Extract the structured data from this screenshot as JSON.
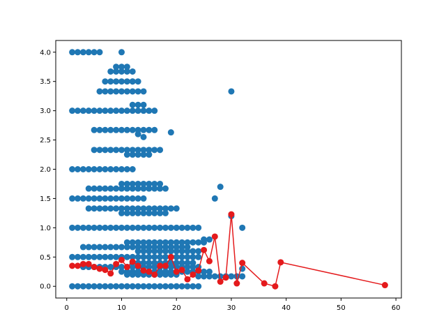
{
  "chart_data": {
    "type": "scatter",
    "title": "",
    "xlabel": "",
    "ylabel": "",
    "xlim": [
      -2,
      61
    ],
    "ylim": [
      -0.2,
      4.2
    ],
    "x_ticks": [
      0,
      10,
      20,
      30,
      40,
      50,
      60
    ],
    "y_ticks": [
      0.0,
      0.5,
      1.0,
      1.5,
      2.0,
      2.5,
      3.0,
      3.5,
      4.0
    ],
    "y_tick_labels": [
      "0.0",
      "0.5",
      "1.0",
      "1.5",
      "2.0",
      "2.5",
      "3.0",
      "3.5",
      "4.0"
    ],
    "grid": false,
    "legend": "none",
    "colors": {
      "scatter": "#1f77b4",
      "line": "#e41a1c"
    },
    "scatter": {
      "x": [
        1,
        2,
        3,
        4,
        5,
        6,
        7,
        8,
        9,
        10,
        11,
        12,
        13,
        14,
        15,
        16,
        17,
        18,
        19,
        20,
        21,
        22,
        23,
        24,
        1,
        2,
        3,
        4,
        5,
        6,
        7,
        8,
        9,
        10,
        11,
        12,
        13,
        14,
        15,
        16,
        17,
        18,
        19,
        20,
        21,
        22,
        23,
        24,
        1,
        2,
        3,
        4,
        5,
        6,
        7,
        8,
        9,
        10,
        11,
        12,
        13,
        14,
        15,
        16,
        17,
        18,
        19,
        20,
        21,
        22,
        23,
        24,
        1,
        2,
        3,
        4,
        5,
        6,
        7,
        8,
        9,
        10,
        11,
        12,
        1,
        2,
        3,
        4,
        5,
        6,
        7,
        8,
        9,
        10,
        11,
        12,
        13,
        14,
        1,
        2,
        3,
        4,
        5,
        6,
        7,
        8,
        9,
        10,
        11,
        12,
        13,
        14,
        15,
        16,
        1,
        2,
        3,
        4,
        5,
        6,
        10,
        3,
        4,
        5,
        6,
        7,
        8,
        9,
        10,
        11,
        12,
        13,
        14,
        15,
        16,
        17,
        18,
        19,
        20,
        21,
        22,
        23,
        24,
        3,
        4,
        5,
        6,
        7,
        8,
        9,
        10,
        11,
        12,
        13,
        14,
        15,
        16,
        17,
        18,
        19,
        20,
        21,
        22,
        4,
        5,
        6,
        7,
        8,
        9,
        10,
        11,
        12,
        13,
        14,
        15,
        16,
        17,
        18,
        19,
        20,
        4,
        5,
        6,
        7,
        8,
        9,
        10,
        11,
        12,
        13,
        14,
        15,
        16,
        17,
        18,
        5,
        6,
        7,
        8,
        9,
        10,
        11,
        12,
        13,
        14,
        15,
        16,
        17,
        5,
        6,
        7,
        8,
        9,
        10,
        11,
        12,
        13,
        14,
        15,
        16,
        6,
        7,
        8,
        9,
        10,
        11,
        12,
        13,
        14,
        7,
        8,
        9,
        10,
        11,
        12,
        13,
        8,
        9,
        10,
        11,
        12,
        9,
        10,
        11,
        10,
        11,
        12,
        13,
        14,
        15,
        16,
        17,
        18,
        19,
        20,
        21,
        22,
        23,
        24,
        25,
        26,
        11,
        12,
        13,
        14,
        15,
        16,
        17,
        18,
        19,
        20,
        21,
        22,
        23,
        24,
        25,
        12,
        13,
        14,
        15,
        16,
        17,
        18,
        19,
        20,
        21,
        22,
        23,
        13,
        14,
        15,
        16,
        17,
        18,
        19,
        20,
        21,
        22,
        23,
        24,
        10,
        11,
        12,
        13,
        14,
        15,
        16,
        17,
        18,
        10,
        11,
        12,
        13,
        14,
        15,
        16,
        17,
        11,
        12,
        13,
        14,
        15,
        16,
        17,
        18,
        19,
        20,
        11,
        12,
        13,
        14,
        15,
        12,
        13,
        14,
        24,
        25,
        26,
        27,
        28,
        29,
        30,
        31,
        32,
        25,
        26,
        27,
        28,
        30,
        32,
        12,
        13,
        14,
        19,
        30,
        32
      ],
      "y": [
        0,
        0,
        0,
        0,
        0,
        0,
        0,
        0,
        0,
        0,
        0,
        0,
        0,
        0,
        0,
        0,
        0,
        0,
        0,
        0,
        0,
        0,
        0,
        0,
        1,
        1,
        1,
        1,
        1,
        1,
        1,
        1,
        1,
        1,
        1,
        1,
        1,
        1,
        1,
        1,
        1,
        1,
        1,
        1,
        1,
        1,
        1,
        1,
        0.5,
        0.5,
        0.5,
        0.5,
        0.5,
        0.5,
        0.5,
        0.5,
        0.5,
        0.5,
        0.5,
        0.5,
        0.5,
        0.5,
        0.5,
        0.5,
        0.5,
        0.5,
        0.5,
        0.5,
        0.5,
        0.5,
        0.5,
        0.5,
        2,
        2,
        2,
        2,
        2,
        2,
        2,
        2,
        2,
        2,
        2,
        2,
        1.5,
        1.5,
        1.5,
        1.5,
        1.5,
        1.5,
        1.5,
        1.5,
        1.5,
        1.5,
        1.5,
        1.5,
        1.5,
        1.5,
        3,
        3,
        3,
        3,
        3,
        3,
        3,
        3,
        3,
        3,
        3,
        3,
        3,
        3,
        3,
        3,
        4,
        4,
        4,
        4,
        4,
        4,
        4,
        0.33,
        0.33,
        0.33,
        0.33,
        0.33,
        0.33,
        0.33,
        0.33,
        0.33,
        0.33,
        0.33,
        0.33,
        0.33,
        0.33,
        0.33,
        0.33,
        0.33,
        0.33,
        0.33,
        0.33,
        0.33,
        0.33,
        0.67,
        0.67,
        0.67,
        0.67,
        0.67,
        0.67,
        0.67,
        0.67,
        0.67,
        0.67,
        0.67,
        0.67,
        0.67,
        0.67,
        0.67,
        0.67,
        0.67,
        0.67,
        0.67,
        0.67,
        1.33,
        1.33,
        1.33,
        1.33,
        1.33,
        1.33,
        1.33,
        1.33,
        1.33,
        1.33,
        1.33,
        1.33,
        1.33,
        1.33,
        1.33,
        1.33,
        1.33,
        1.67,
        1.67,
        1.67,
        1.67,
        1.67,
        1.67,
        1.67,
        1.67,
        1.67,
        1.67,
        1.67,
        1.67,
        1.67,
        1.67,
        1.67,
        2.33,
        2.33,
        2.33,
        2.33,
        2.33,
        2.33,
        2.33,
        2.33,
        2.33,
        2.33,
        2.33,
        2.33,
        2.33,
        2.67,
        2.67,
        2.67,
        2.67,
        2.67,
        2.67,
        2.67,
        2.67,
        2.67,
        2.67,
        2.67,
        2.67,
        3.33,
        3.33,
        3.33,
        3.33,
        3.33,
        3.33,
        3.33,
        3.33,
        3.33,
        3.5,
        3.5,
        3.5,
        3.5,
        3.5,
        3.5,
        3.5,
        3.67,
        3.67,
        3.67,
        3.67,
        3.67,
        3.75,
        3.75,
        3.75,
        0.25,
        0.25,
        0.25,
        0.25,
        0.25,
        0.25,
        0.25,
        0.25,
        0.25,
        0.25,
        0.25,
        0.25,
        0.25,
        0.25,
        0.25,
        0.25,
        0.25,
        0.75,
        0.75,
        0.75,
        0.75,
        0.75,
        0.75,
        0.75,
        0.75,
        0.75,
        0.75,
        0.75,
        0.75,
        0.75,
        0.75,
        0.75,
        0.4,
        0.4,
        0.4,
        0.4,
        0.4,
        0.4,
        0.4,
        0.4,
        0.4,
        0.4,
        0.4,
        0.4,
        0.6,
        0.6,
        0.6,
        0.6,
        0.6,
        0.6,
        0.6,
        0.6,
        0.6,
        0.6,
        0.6,
        0.6,
        1.25,
        1.25,
        1.25,
        1.25,
        1.25,
        1.25,
        1.25,
        1.25,
        1.25,
        1.75,
        1.75,
        1.75,
        1.75,
        1.75,
        1.75,
        1.75,
        1.75,
        0.2,
        0.2,
        0.2,
        0.2,
        0.2,
        0.2,
        0.2,
        0.2,
        0.2,
        0.2,
        2.25,
        2.25,
        2.25,
        2.25,
        2.25,
        3.1,
        3.1,
        3.1,
        0.17,
        0.17,
        0.17,
        0.17,
        0.17,
        0.17,
        0.17,
        0.17,
        0.17,
        0.8,
        0.8,
        1.5,
        1.7,
        1.2,
        1.0,
        3.5,
        2.6,
        2.55,
        2.63,
        3.33,
        0.3
      ]
    },
    "line": {
      "x": [
        1,
        2,
        3,
        4,
        5,
        6,
        7,
        8,
        9,
        10,
        11,
        12,
        13,
        14,
        15,
        16,
        17,
        18,
        19,
        20,
        21,
        22,
        23,
        24,
        25,
        26,
        27,
        28,
        29,
        30,
        31,
        32,
        36,
        38,
        39,
        58
      ],
      "y": [
        0.35,
        0.35,
        0.38,
        0.38,
        0.33,
        0.3,
        0.28,
        0.22,
        0.38,
        0.45,
        0.33,
        0.42,
        0.35,
        0.27,
        0.25,
        0.2,
        0.35,
        0.35,
        0.5,
        0.25,
        0.28,
        0.12,
        0.2,
        0.27,
        0.62,
        0.43,
        0.85,
        0.08,
        0.15,
        1.23,
        0.05,
        0.4,
        0.05,
        0.0,
        0.41,
        0.02
      ]
    }
  }
}
